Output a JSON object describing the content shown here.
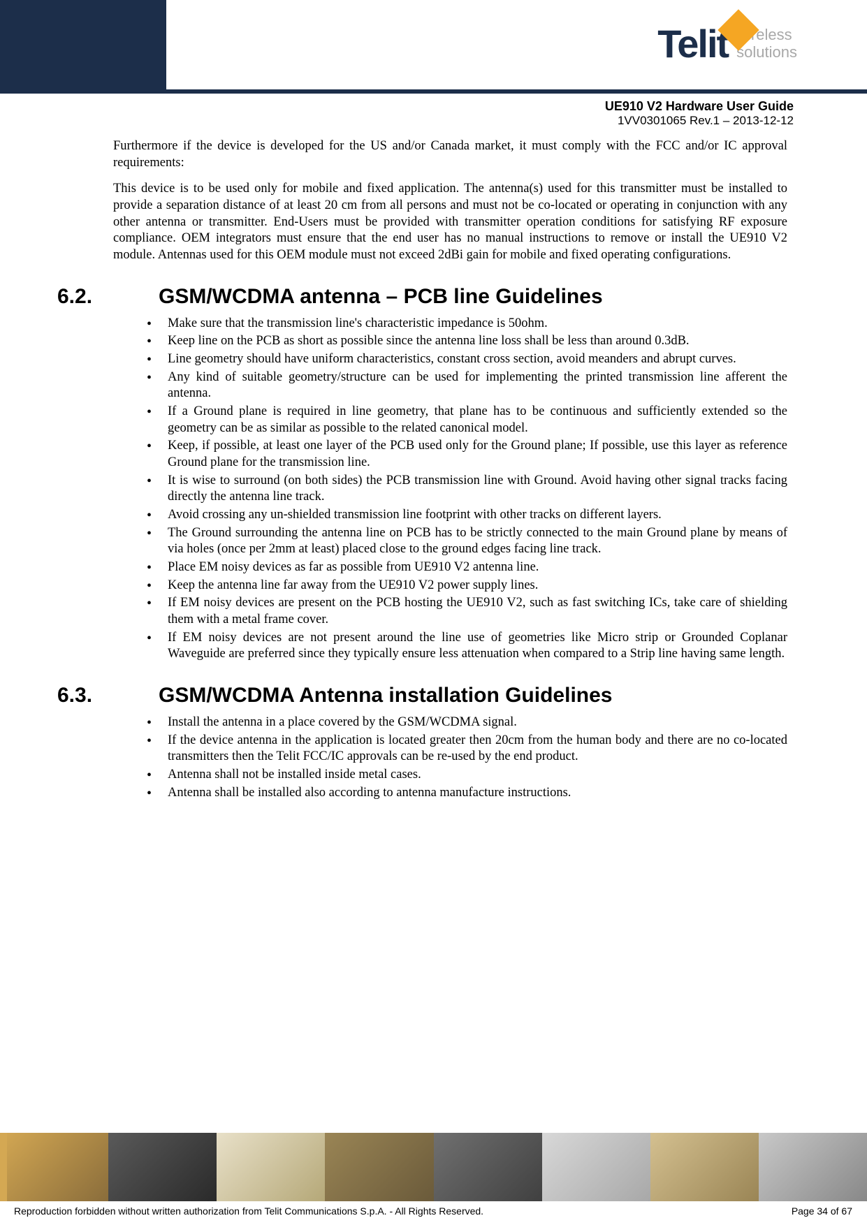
{
  "header": {
    "logo_text": "Telit",
    "logo_tagline_line1": "wireless",
    "logo_tagline_line2": "solutions",
    "colors": {
      "header_bg": "#1c2e4a",
      "logo_text": "#1c2e4a",
      "logo_accent": "#f5a623",
      "tagline": "#a8a8a8"
    },
    "doc_title": "UE910 V2 Hardware User Guide",
    "doc_rev": "1VV0301065 Rev.1 – 2013-12-12"
  },
  "content": {
    "intro_paragraphs": [
      "Furthermore if the device is developed for the US and/or Canada market, it must comply with the FCC and/or IC approval requirements:",
      "This device is to be used only for mobile and fixed application. The antenna(s) used for this transmitter must be installed to provide a separation distance of at least 20 cm from all persons and must not be co-located or operating in conjunction with any other antenna or transmitter. End-Users must be provided with transmitter operation conditions for satisfying RF exposure compliance. OEM integrators must ensure that the end user has no manual instructions to remove or install the UE910 V2 module. Antennas used for this OEM module must not exceed 2dBi gain for mobile and fixed operating configurations."
    ],
    "section_62": {
      "number": "6.2.",
      "title": "GSM/WCDMA antenna – PCB line Guidelines",
      "bullets": [
        "Make sure that the transmission line's characteristic impedance is 50ohm.",
        "Keep line on the PCB as short as possible since the antenna line loss shall be less than around 0.3dB.",
        "Line geometry should have uniform characteristics, constant cross section, avoid meanders and abrupt curves.",
        "Any kind of suitable geometry/structure can be used for implementing the printed transmission line afferent the antenna.",
        "If a Ground plane is required in line geometry, that plane has to be continuous and sufficiently extended so the geometry can be as similar as possible to the related canonical model.",
        "Keep, if possible, at least one layer of the PCB used only for the Ground plane; If possible, use this layer as reference Ground plane for the transmission line.",
        "It is wise to surround (on both sides) the PCB transmission line with Ground. Avoid having other signal tracks facing directly the antenna line track.",
        "Avoid crossing any un-shielded transmission line footprint with other tracks on different layers.",
        "The Ground surrounding the antenna line on PCB has to be strictly connected to the main Ground plane by means of via holes (once per 2mm at least) placed close to the ground edges facing line track.",
        "Place EM noisy devices as far as possible from UE910 V2 antenna line.",
        "Keep the antenna line far away from the UE910 V2 power supply lines.",
        "If EM noisy devices are present on the PCB hosting the UE910 V2, such as fast switching ICs, take care of shielding them with a metal frame cover.",
        "If EM noisy devices are not present around the line use of geometries like Micro strip or Grounded Coplanar Waveguide are preferred since they typically ensure less attenuation when compared to a Strip line having same length."
      ]
    },
    "section_63": {
      "number": "6.3.",
      "title": "GSM/WCDMA Antenna installation Guidelines",
      "bullets": [
        "Install the antenna in a place covered by the GSM/WCDMA signal.",
        "If the device antenna in the application is located greater then 20cm from the human body and there are no co-located transmitters then the Telit FCC/IC approvals can be re-used by the end product.",
        "Antenna shall not be installed inside metal cases.",
        "Antenna shall be installed also according to antenna manufacture instructions."
      ]
    }
  },
  "footer": {
    "copyright": "Reproduction forbidden without written authorization from Telit Communications S.p.A. - All Rights Reserved.",
    "page": "Page 34 of 67",
    "image_colors": [
      "#d4a853",
      "#5a5a5a",
      "#e8e0c8",
      "#9a8555",
      "#707070",
      "#d8d8d8",
      "#d4c090",
      "#c8c8c8"
    ]
  },
  "typography": {
    "body_font": "Times New Roman",
    "heading_font": "Arial",
    "body_fontsize": 18.5,
    "heading_fontsize": 30,
    "footer_fontsize": 14
  }
}
